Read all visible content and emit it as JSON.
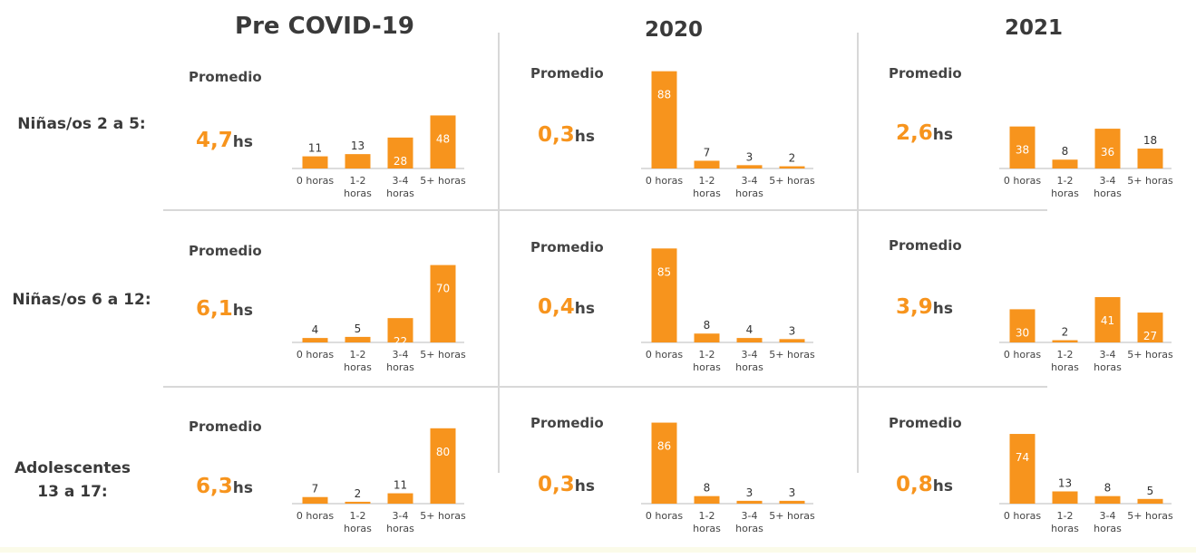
{
  "columns": [
    "Pre COVID-19",
    "2020",
    "2021"
  ],
  "rows": [
    "Niñas/os 2 a 5:",
    "Niñas/os 6 a 12:",
    "Adolescentes 13 a 17:"
  ],
  "promedio_label": "Promedio",
  "unit": "hs",
  "colors": {
    "bar": "#f7941d",
    "accent": "#f7941d",
    "text": "#3a3a3a",
    "axis": "#bbbbbb",
    "divider": "#d8d8d8"
  },
  "averages": [
    [
      "4,7",
      "0,3",
      "2,6"
    ],
    [
      "6,1",
      "0,4",
      "3,9"
    ],
    [
      "6,3",
      "0,3",
      "0,8"
    ]
  ],
  "chart_data": [
    {
      "type": "bar",
      "row": "Niñas/os 2 a 5:",
      "column": "Pre COVID-19",
      "categories": [
        "0 horas",
        "1-2 horas",
        "3-4 horas",
        "5+ horas"
      ],
      "values": [
        11,
        13,
        28,
        48
      ]
    },
    {
      "type": "bar",
      "row": "Niñas/os 2 a 5:",
      "column": "2020",
      "categories": [
        "0 horas",
        "1-2 horas",
        "3-4 horas",
        "5+ horas"
      ],
      "values": [
        88,
        7,
        3,
        2
      ]
    },
    {
      "type": "bar",
      "row": "Niñas/os 2 a 5:",
      "column": "2021",
      "categories": [
        "0 horas",
        "1-2 horas",
        "3-4 horas",
        "5+ horas"
      ],
      "values": [
        38,
        8,
        36,
        18
      ]
    },
    {
      "type": "bar",
      "row": "Niñas/os 6 a 12:",
      "column": "Pre COVID-19",
      "categories": [
        "0 horas",
        "1-2 horas",
        "3-4 horas",
        "5+ horas"
      ],
      "values": [
        4,
        5,
        22,
        70
      ]
    },
    {
      "type": "bar",
      "row": "Niñas/os 6 a 12:",
      "column": "2020",
      "categories": [
        "0 horas",
        "1-2 horas",
        "3-4 horas",
        "5+ horas"
      ],
      "values": [
        85,
        8,
        4,
        3
      ]
    },
    {
      "type": "bar",
      "row": "Niñas/os 6 a 12:",
      "column": "2021",
      "categories": [
        "0 horas",
        "1-2 horas",
        "3-4 horas",
        "5+ horas"
      ],
      "values": [
        30,
        2,
        41,
        27
      ]
    },
    {
      "type": "bar",
      "row": "Adolescentes 13 a 17:",
      "column": "Pre COVID-19",
      "categories": [
        "0 horas",
        "1-2 horas",
        "3-4 horas",
        "5+ horas"
      ],
      "values": [
        7,
        2,
        11,
        80
      ]
    },
    {
      "type": "bar",
      "row": "Adolescentes 13 a 17:",
      "column": "2020",
      "categories": [
        "0 horas",
        "1-2 horas",
        "3-4 horas",
        "5+ horas"
      ],
      "values": [
        86,
        8,
        3,
        3
      ]
    },
    {
      "type": "bar",
      "row": "Adolescentes 13 a 17:",
      "column": "2021",
      "categories": [
        "0 horas",
        "1-2 horas",
        "3-4 horas",
        "5+ horas"
      ],
      "values": [
        74,
        13,
        8,
        5
      ]
    }
  ]
}
